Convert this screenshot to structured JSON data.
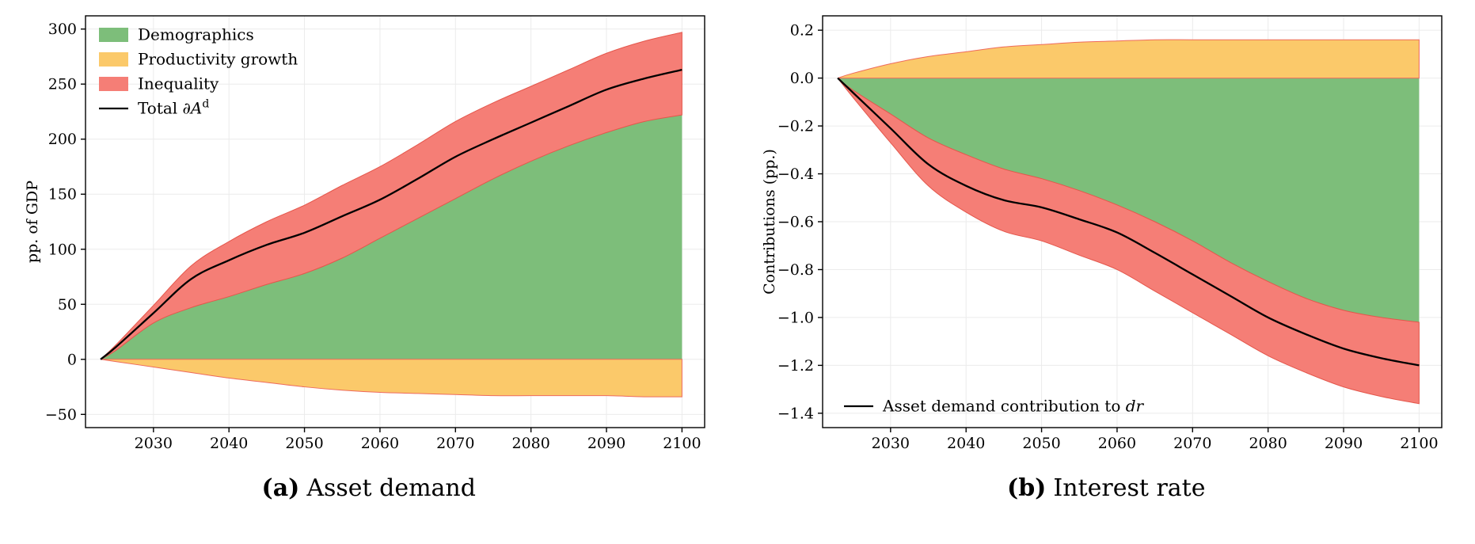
{
  "colors": {
    "demographics": "#7dbe7a",
    "productivity": "#fbc96a",
    "inequality": "#f57e76",
    "productivity_edge": "#ee6a5c",
    "inequality_edge": "#e4564b",
    "total_line": "#000000",
    "grid": "#ebebeb",
    "axis": "#000000",
    "background": "#ffffff"
  },
  "captions": {
    "a_label": "(a)",
    "a_text": "Asset demand",
    "b_label": "(b)",
    "b_text": "Interest rate"
  },
  "chart_data": [
    {
      "id": "asset-demand",
      "type": "area",
      "stacked": true,
      "title": "",
      "ylabel": "pp. of GDP",
      "x": [
        2023,
        2025,
        2030,
        2035,
        2040,
        2045,
        2050,
        2055,
        2060,
        2065,
        2070,
        2075,
        2080,
        2085,
        2090,
        2095,
        2100
      ],
      "xticks": [
        2030,
        2040,
        2050,
        2060,
        2070,
        2080,
        2090,
        2100
      ],
      "xlim": [
        2021,
        2103
      ],
      "ylim": [
        -62,
        312
      ],
      "yticks": [
        -50,
        0,
        50,
        100,
        150,
        200,
        250,
        300
      ],
      "ytick_decimals": 0,
      "grid": true,
      "series": [
        {
          "name": "Demographics",
          "color": "demographics",
          "values": [
            0,
            8,
            33,
            47,
            57,
            68,
            78,
            92,
            110,
            128,
            146,
            164,
            180,
            194,
            206,
            216,
            222
          ]
        },
        {
          "name": "Productivity growth",
          "color": "productivity",
          "edge": "productivity_edge",
          "values": [
            0,
            -2,
            -7,
            -12,
            -17,
            -21,
            -25,
            -28,
            -30,
            -31,
            -32,
            -33,
            -33,
            -33,
            -33,
            -34,
            -34
          ]
        },
        {
          "name": "Inequality",
          "color": "inequality",
          "edge": "inequality_edge",
          "values": [
            0,
            5,
            16,
            38,
            50,
            57,
            62,
            66,
            65,
            67,
            70,
            69,
            68,
            69,
            72,
            73,
            75
          ]
        }
      ],
      "total": {
        "label_pre": "Total ∂",
        "label_italic": "A",
        "label_sup": "d",
        "values": [
          0,
          11,
          42,
          73,
          90,
          104,
          115,
          130,
          145,
          164,
          184,
          200,
          215,
          230,
          245,
          255,
          263
        ]
      },
      "legend": {
        "position": "top-left",
        "show_patches": true
      }
    },
    {
      "id": "interest-rate",
      "type": "area",
      "stacked": true,
      "title": "",
      "ylabel": "Contributions (pp.)",
      "x": [
        2023,
        2025,
        2030,
        2035,
        2040,
        2045,
        2050,
        2055,
        2060,
        2065,
        2070,
        2075,
        2080,
        2085,
        2090,
        2095,
        2100
      ],
      "xticks": [
        2030,
        2040,
        2050,
        2060,
        2070,
        2080,
        2090,
        2100
      ],
      "xlim": [
        2021,
        2103
      ],
      "ylim": [
        -1.46,
        0.26
      ],
      "yticks": [
        -1.4,
        -1.2,
        -1.0,
        -0.8,
        -0.6,
        -0.4,
        -0.2,
        0.0,
        0.2
      ],
      "ytick_decimals": 1,
      "grid": true,
      "series": [
        {
          "name": "Demographics",
          "color": "demographics",
          "values": [
            0,
            -0.05,
            -0.15,
            -0.25,
            -0.32,
            -0.38,
            -0.42,
            -0.47,
            -0.53,
            -0.6,
            -0.68,
            -0.77,
            -0.85,
            -0.92,
            -0.97,
            -1.0,
            -1.02
          ]
        },
        {
          "name": "Productivity growth",
          "color": "productivity",
          "edge": "productivity_edge",
          "values": [
            0,
            0.02,
            0.06,
            0.09,
            0.11,
            0.13,
            0.14,
            0.15,
            0.155,
            0.16,
            0.16,
            0.16,
            0.16,
            0.16,
            0.16,
            0.16,
            0.16
          ]
        },
        {
          "name": "Inequality",
          "color": "inequality",
          "edge": "inequality_edge",
          "values": [
            0,
            -0.03,
            -0.12,
            -0.2,
            -0.24,
            -0.26,
            -0.26,
            -0.27,
            -0.27,
            -0.29,
            -0.3,
            -0.3,
            -0.31,
            -0.31,
            -0.32,
            -0.33,
            -0.34
          ]
        }
      ],
      "total": {
        "label_pre": "Asset demand contribution to ",
        "label_italic": "dr",
        "label_sup": "",
        "values": [
          0,
          -0.06,
          -0.21,
          -0.36,
          -0.45,
          -0.51,
          -0.54,
          -0.59,
          -0.645,
          -0.73,
          -0.82,
          -0.91,
          -1.0,
          -1.07,
          -1.13,
          -1.17,
          -1.2
        ]
      },
      "legend": {
        "position": "bottom-left",
        "show_patches": false
      }
    }
  ]
}
